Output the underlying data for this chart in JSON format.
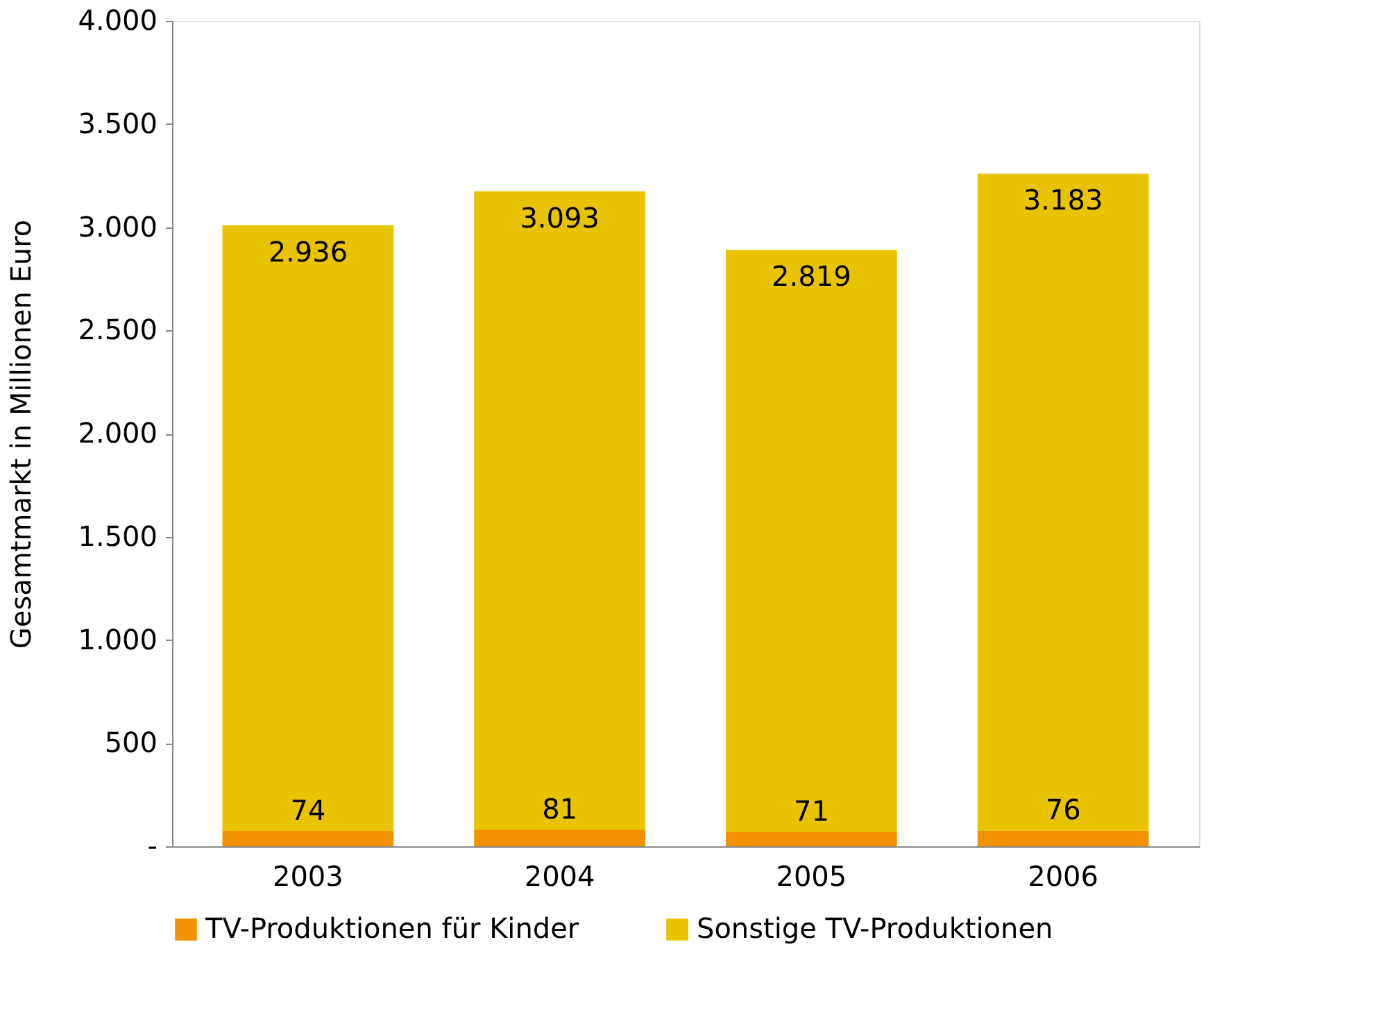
{
  "chart_data": {
    "type": "bar",
    "stacked": true,
    "ylabel": "Gesamtmarkt in Millionen Euro",
    "categories": [
      "2003",
      "2004",
      "2005",
      "2006"
    ],
    "series": [
      {
        "name": "TV-Produktionen für Kinder",
        "color": "#f39200",
        "values": [
          74,
          81,
          71,
          76
        ],
        "value_labels": [
          "74",
          "81",
          "71",
          "76"
        ]
      },
      {
        "name": "Sonstige TV-Produktionen",
        "color": "#e9c300",
        "values": [
          2936,
          3093,
          2819,
          3183
        ],
        "value_labels": [
          "2.936",
          "3.093",
          "2.819",
          "3.183"
        ]
      }
    ],
    "ylim": [
      0,
      4000
    ],
    "yticks": [
      {
        "value": 0,
        "label": "-"
      },
      {
        "value": 500,
        "label": "500"
      },
      {
        "value": 1000,
        "label": "1.000"
      },
      {
        "value": 1500,
        "label": "1.500"
      },
      {
        "value": 2000,
        "label": "2.000"
      },
      {
        "value": 2500,
        "label": "2.500"
      },
      {
        "value": 3000,
        "label": "3.000"
      },
      {
        "value": 3500,
        "label": "3.500"
      },
      {
        "value": 4000,
        "label": "4.000"
      }
    ],
    "grid": false,
    "legend": "bottom"
  }
}
